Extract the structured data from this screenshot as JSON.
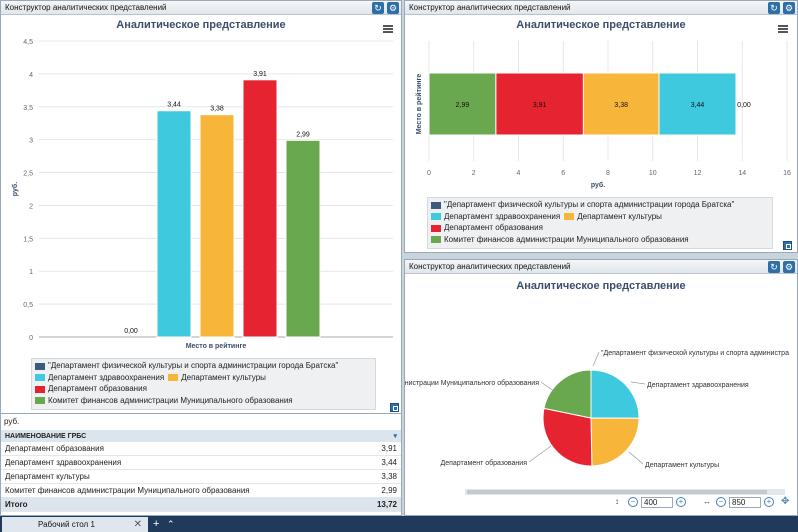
{
  "panels": {
    "left": {
      "title": "Конструктор аналитических представлений"
    },
    "right_top": {
      "title": "Конструктор аналитических представлений"
    },
    "right_bottom": {
      "title": "Конструктор аналитических представлений"
    }
  },
  "icons": {
    "refresh": "refresh-icon",
    "settings": "gear-icon",
    "menu": "hamburger-menu-icon",
    "expand": "expand-icon"
  },
  "colors": {
    "blue_dark": "#3c5a7c",
    "cyan": "#3ec9df",
    "orange": "#f7b63a",
    "red": "#e62331",
    "green": "#6aa84f"
  },
  "legend": {
    "items": [
      "\"Департамент физической культуры и спорта администрации города Братска\"",
      "Департамент здравоохранения",
      "Департамент культуры",
      "Департамент образования",
      "Комитет финансов администрации Муниципального образования"
    ]
  },
  "chart_data": [
    {
      "type": "bar",
      "title": "Аналитическое представление",
      "xlabel": "Место в рейтинге",
      "ylabel": "руб.",
      "ylim": [
        0,
        4.5
      ],
      "yticks": [
        "0",
        "0,5",
        "1",
        "1,5",
        "2",
        "2,5",
        "3",
        "3,5",
        "4",
        "4,5"
      ],
      "series": [
        {
          "name": "\"Департамент физической культуры и спорта администрации города Братска\"",
          "value": 0.0,
          "label": "0,00",
          "color": "#3c5a7c"
        },
        {
          "name": "Департамент здравоохранения",
          "value": 3.44,
          "label": "3,44",
          "color": "#3ec9df"
        },
        {
          "name": "Департамент культуры",
          "value": 3.38,
          "label": "3,38",
          "color": "#f7b63a"
        },
        {
          "name": "Департамент образования",
          "value": 3.91,
          "label": "3,91",
          "color": "#e62331"
        },
        {
          "name": "Комитет финансов администрации Муниципального образования",
          "value": 2.99,
          "label": "2,99",
          "color": "#6aa84f"
        }
      ]
    },
    {
      "type": "bar",
      "orientation": "horizontal-stacked",
      "title": "Аналитическое представление",
      "xlabel": "руб.",
      "ylabel": "Место в рейтинге",
      "xlim": [
        0,
        16
      ],
      "xticks": [
        "0",
        "2",
        "4",
        "6",
        "8",
        "10",
        "12",
        "14",
        "16"
      ],
      "series": [
        {
          "name": "Комитет финансов администрации Муниципального образования",
          "value": 2.99,
          "label": "2,99",
          "color": "#6aa84f"
        },
        {
          "name": "Департамент образования",
          "value": 3.91,
          "label": "3,91",
          "color": "#e62331"
        },
        {
          "name": "Департамент культуры",
          "value": 3.38,
          "label": "3,38",
          "color": "#f7b63a"
        },
        {
          "name": "Департамент здравоохранения",
          "value": 3.44,
          "label": "3,44",
          "color": "#3ec9df"
        },
        {
          "name": "\"Департамент физической культуры и спорта администрации города Братска\"",
          "value": 0.0,
          "label": "0,00",
          "color": "#3c5a7c"
        }
      ]
    },
    {
      "type": "pie",
      "title": "Аналитическое представление",
      "slices": [
        {
          "name": "\"Департамент физической культуры и спорта администрации города Братска\"",
          "value": 0.0,
          "color": "#3c5a7c"
        },
        {
          "name": "Департамент здравоохранения",
          "value": 3.44,
          "color": "#3ec9df"
        },
        {
          "name": "Департамент культуры",
          "value": 3.38,
          "color": "#f7b63a"
        },
        {
          "name": "Департамент образования",
          "value": 3.91,
          "color": "#e62331"
        },
        {
          "name": "Комитет финансов администрации Муниципального образования",
          "value": 2.99,
          "color": "#6aa84f"
        }
      ],
      "labels": [
        "\"Департамент физической культуры и спорта администра",
        "Департамент здравоохранения",
        "Департамент культуры",
        "Департамент образования",
        "нистрации Муниципального образования"
      ]
    }
  ],
  "table": {
    "unit": "руб.",
    "header": "НАИМЕНОВАНИЕ ГРБС",
    "rows": [
      {
        "name": "Департамент образования",
        "value": "3,91"
      },
      {
        "name": "Департамент здравоохранения",
        "value": "3,44"
      },
      {
        "name": "Департамент культуры",
        "value": "3,38"
      },
      {
        "name": "Комитет финансов администрации Муниципального образования",
        "value": "2,99"
      }
    ],
    "total_label": "Итого",
    "total_value": "13,72"
  },
  "zoom": {
    "left_value": "400",
    "right_value": "850"
  },
  "taskbar": {
    "tab_label": "Рабочий стол 1"
  }
}
